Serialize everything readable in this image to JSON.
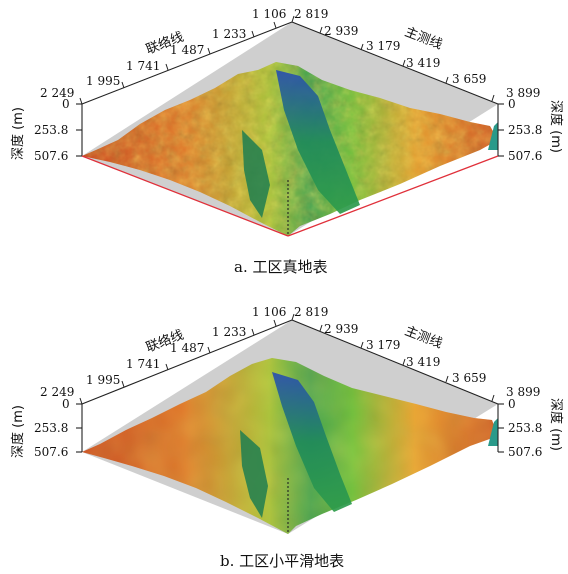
{
  "panels": [
    {
      "caption": "a. 工区真地表",
      "crossline_axis_name": "联络线",
      "inline_axis_name": "主测线",
      "depth_axis_name": "深度 (m)",
      "crossline_ticks": [
        "2 249",
        "1 995",
        "1 741",
        "1 487",
        "1 233",
        "1 106"
      ],
      "inline_ticks": [
        "2 819",
        "2 939",
        "3 179",
        "3 419",
        "3 659",
        "3 899"
      ],
      "depth_ticks_left": [
        "0",
        "253.8",
        "507.6"
      ],
      "depth_ticks_right": [
        "0",
        "253.8",
        "507.6"
      ],
      "surface": "rough"
    },
    {
      "caption": "b. 工区小平滑地表",
      "crossline_axis_name": "联络线",
      "inline_axis_name": "主测线",
      "depth_axis_name": "深度 (m)",
      "crossline_ticks": [
        "2 249",
        "1 995",
        "1 741",
        "1 487",
        "1 233",
        "1 106"
      ],
      "inline_ticks": [
        "2 819",
        "2 939",
        "3 179",
        "3 419",
        "3 659",
        "3 899"
      ],
      "depth_ticks_left": [
        "0",
        "253.8",
        "507.6"
      ],
      "depth_ticks_right": [
        "0",
        "253.8",
        "507.6"
      ],
      "surface": "smooth"
    }
  ],
  "colors": {
    "axis": "#222222",
    "base_edge_top_panel": "#e0303a",
    "base_fill": "#c8c8c8",
    "terrain_low": "#d64a1e",
    "terrain_mid": "#e89a2a",
    "terrain_high": "#9cc83a",
    "terrain_valley": "#2e8a4a",
    "terrain_deep": "#2040a0"
  }
}
